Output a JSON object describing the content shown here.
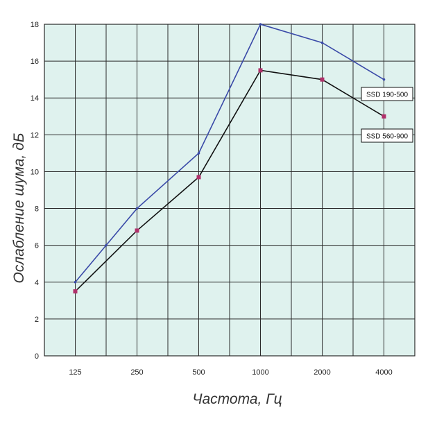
{
  "chart_data": {
    "type": "line",
    "title": "",
    "xlabel": "Частота, Гц",
    "ylabel": "Ослабление шума, дБ",
    "categories": [
      "125",
      "250",
      "500",
      "1000",
      "2000",
      "4000"
    ],
    "ylim": [
      0,
      18
    ],
    "yticks": [
      0,
      2,
      4,
      6,
      8,
      10,
      12,
      14,
      16,
      18
    ],
    "grid": true,
    "legend": "right",
    "series": [
      {
        "name": "SSD 190-500",
        "color": "#3a4aa8",
        "x": [
          0,
          0.5,
          1,
          2,
          3,
          4,
          5
        ],
        "values": [
          4.0,
          6.0,
          8.0,
          11.0,
          18.0,
          17.0,
          15.0
        ]
      },
      {
        "name": "SSD 560-900",
        "color": "#111111",
        "x": [
          0,
          1,
          2,
          3,
          4,
          5
        ],
        "values": [
          3.5,
          6.8,
          9.7,
          15.5,
          15.0,
          13.0
        ]
      }
    ],
    "colors": {
      "plot_background": "#dff2ee",
      "grid": "#2a2a2a",
      "marker": "#b0306a"
    }
  }
}
